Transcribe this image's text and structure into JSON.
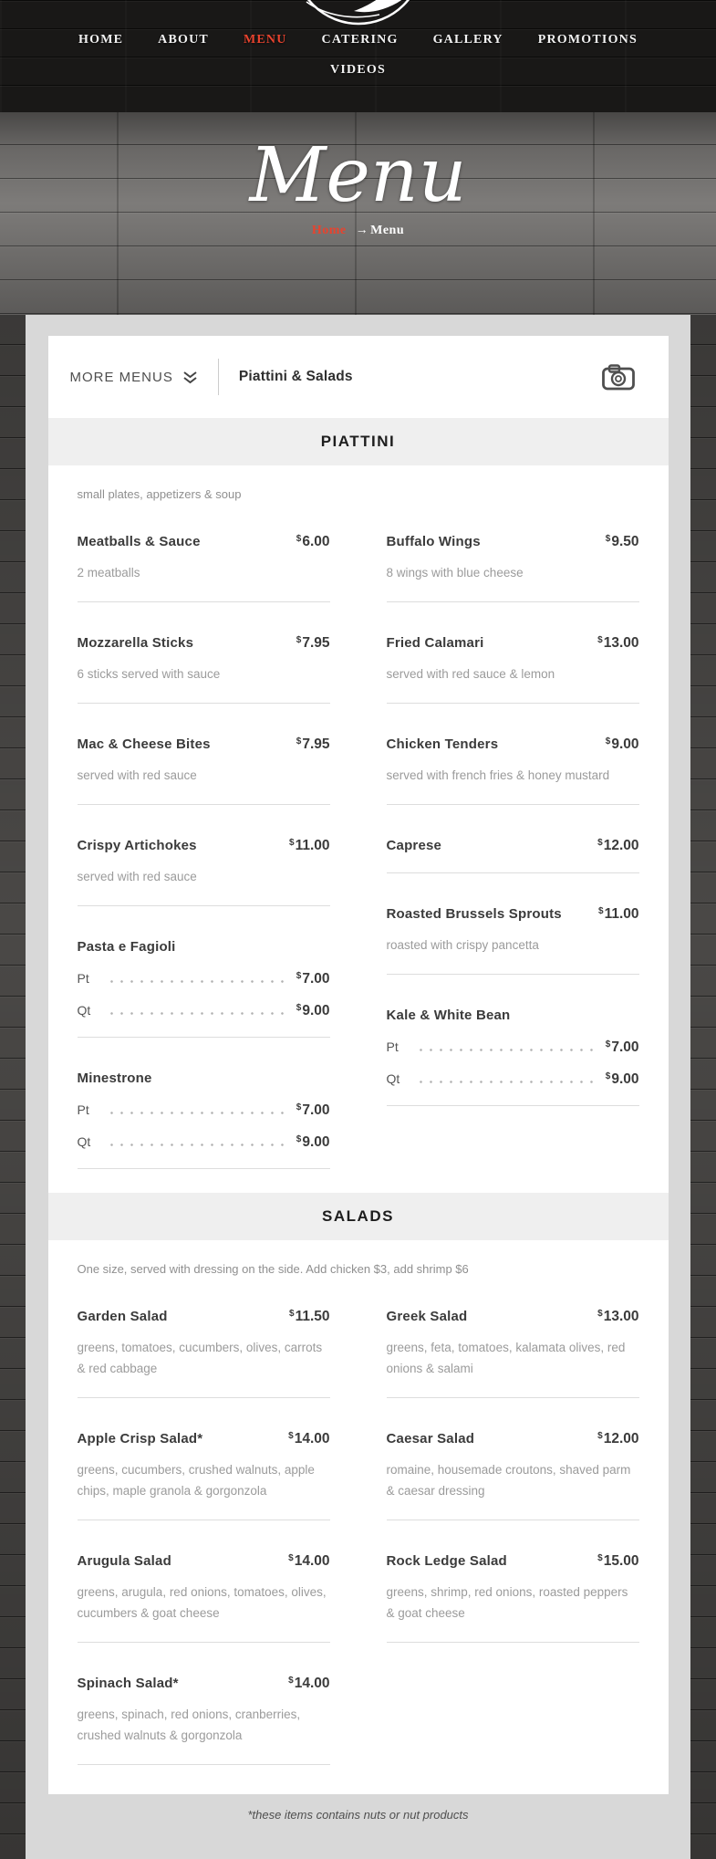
{
  "colors": {
    "accent": "#e8432e",
    "panel_bg": "#d8d8d8",
    "band_bg": "#efefef"
  },
  "nav": {
    "items": [
      {
        "label": "HOME",
        "active": false
      },
      {
        "label": "ABOUT",
        "active": false
      },
      {
        "label": "MENU",
        "active": true
      },
      {
        "label": "CATERING",
        "active": false
      },
      {
        "label": "GALLERY",
        "active": false
      },
      {
        "label": "PROMOTIONS",
        "active": false
      },
      {
        "label": "VIDEOS",
        "active": false
      }
    ]
  },
  "banner": {
    "title": "Menu",
    "breadcrumb": {
      "home": "Home",
      "arrow": "→",
      "current": "Menu"
    }
  },
  "menu_card": {
    "header": {
      "more_menus_label": "MORE MENUS",
      "title": "Piattini & Salads"
    },
    "currency_symbol": "$",
    "sections": [
      {
        "heading": "PIATTINI",
        "note": "small plates, appetizers & soup",
        "columns": [
          [
            {
              "name": "Meatballs & Sauce",
              "price": "6.00",
              "desc": "2 meatballs"
            },
            {
              "name": "Mozzarella Sticks",
              "price": "7.95",
              "desc": "6 sticks served with sauce"
            },
            {
              "name": "Mac & Cheese Bites",
              "price": "7.95",
              "desc": "served with red sauce"
            },
            {
              "name": "Crispy Artichokes",
              "price": "11.00",
              "desc": "served with red sauce"
            },
            {
              "name": "Pasta e Fagioli",
              "sizes": [
                {
                  "label": "Pt",
                  "price": "7.00"
                },
                {
                  "label": "Qt",
                  "price": "9.00"
                }
              ]
            },
            {
              "name": "Minestrone",
              "sizes": [
                {
                  "label": "Pt",
                  "price": "7.00"
                },
                {
                  "label": "Qt",
                  "price": "9.00"
                }
              ]
            }
          ],
          [
            {
              "name": "Buffalo Wings",
              "price": "9.50",
              "desc": "8 wings with blue cheese"
            },
            {
              "name": "Fried Calamari",
              "price": "13.00",
              "desc": "served with red sauce & lemon"
            },
            {
              "name": "Chicken Tenders",
              "price": "9.00",
              "desc": "served with french fries & honey mustard"
            },
            {
              "name": "Caprese",
              "price": "12.00"
            },
            {
              "name": "Roasted Brussels Sprouts",
              "price": "11.00",
              "desc": "roasted with crispy pancetta"
            },
            {
              "name": "Kale & White Bean",
              "sizes": [
                {
                  "label": "Pt",
                  "price": "7.00"
                },
                {
                  "label": "Qt",
                  "price": "9.00"
                }
              ]
            }
          ]
        ]
      },
      {
        "heading": "SALADS",
        "note": "One size, served with dressing on the side. Add chicken $3, add shrimp $6",
        "columns": [
          [
            {
              "name": "Garden Salad",
              "price": "11.50",
              "desc": "greens, tomatoes, cucumbers, olives, carrots & red cabbage"
            },
            {
              "name": "Apple Crisp Salad*",
              "price": "14.00",
              "desc": "greens, cucumbers, crushed walnuts, apple chips, maple granola & gorgonzola"
            },
            {
              "name": "Arugula Salad",
              "price": "14.00",
              "desc": "greens, arugula, red onions, tomatoes, olives, cucumbers & goat cheese"
            },
            {
              "name": "Spinach Salad*",
              "price": "14.00",
              "desc": "greens, spinach, red onions, cranberries, crushed walnuts & gorgonzola"
            }
          ],
          [
            {
              "name": "Greek Salad",
              "price": "13.00",
              "desc": "greens, feta, tomatoes, kalamata olives, red onions & salami"
            },
            {
              "name": "Caesar Salad",
              "price": "12.00",
              "desc": "romaine, housemade croutons, shaved parm & caesar dressing"
            },
            {
              "name": "Rock Ledge Salad",
              "price": "15.00",
              "desc": "greens, shrimp, red onions, roasted peppers & goat cheese"
            }
          ]
        ]
      }
    ]
  },
  "footer": {
    "note": "*these items contains nuts or nut products"
  }
}
